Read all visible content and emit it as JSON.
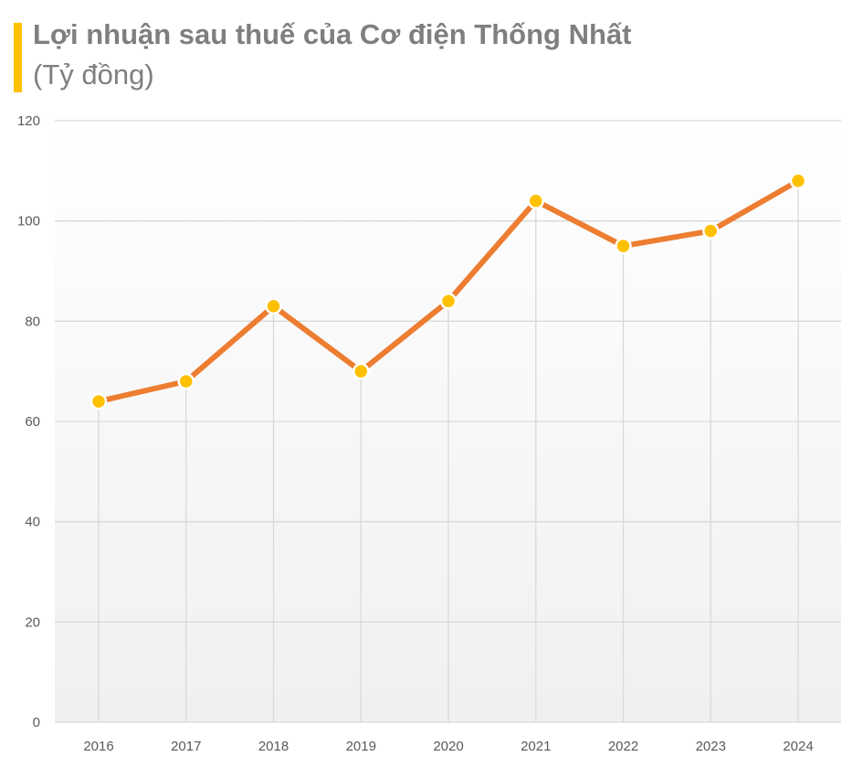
{
  "chart_data": {
    "type": "line",
    "title": "Lợi nhuận sau thuế của Cơ điện Thống Nhất",
    "subtitle": "(Tỷ đồng)",
    "categories": [
      "2016",
      "2017",
      "2018",
      "2019",
      "2020",
      "2021",
      "2022",
      "2023",
      "2024"
    ],
    "values": [
      64,
      68,
      83,
      70,
      84,
      104,
      95,
      98,
      108
    ],
    "ylim": [
      0,
      120
    ],
    "yticks": [
      0,
      20,
      40,
      60,
      80,
      100,
      120
    ],
    "grid": true,
    "legend": "none",
    "colors": {
      "line": "#ed7d31",
      "marker": "#ffc000",
      "accent": "#ffc000",
      "grid": "#d9d9d9"
    }
  }
}
